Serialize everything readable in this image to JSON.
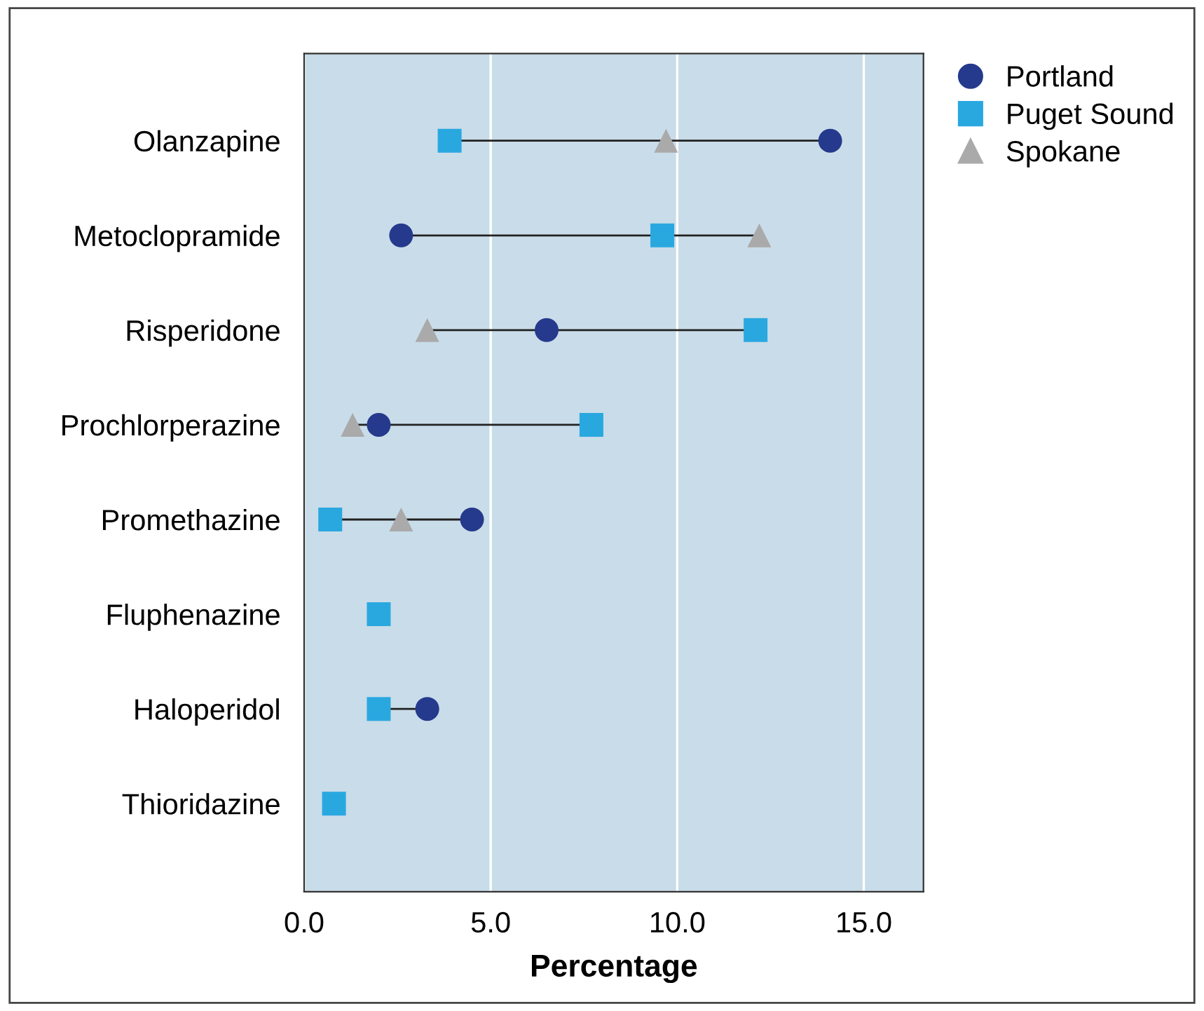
{
  "chart_data": {
    "type": "scatter",
    "xlabel": "Percentage",
    "categories": [
      "Olanzapine",
      "Metoclopramide",
      "Risperidone",
      "Prochlorperazine",
      "Promethazine",
      "Fluphenazine",
      "Haloperidol",
      "Thioridazine"
    ],
    "orientation": "horizontal",
    "series": [
      {
        "name": "Portland",
        "color": "#253a8c",
        "marker": "circle",
        "values": [
          14.1,
          2.6,
          6.5,
          2.0,
          4.5,
          null,
          3.3,
          null
        ]
      },
      {
        "name": "Puget Sound",
        "color": "#29a8e0",
        "marker": "square",
        "values": [
          3.9,
          9.6,
          12.1,
          7.7,
          0.7,
          2.0,
          2.0,
          0.8
        ]
      },
      {
        "name": "Spokane",
        "color": "#aaaaaa",
        "marker": "triangle",
        "values": [
          9.7,
          12.2,
          3.3,
          1.3,
          2.6,
          null,
          null,
          null
        ]
      }
    ],
    "xlim": [
      0,
      16.6
    ],
    "xticks": [
      {
        "value": 0,
        "label": "0.0"
      },
      {
        "value": 5,
        "label": "5.0"
      },
      {
        "value": 10,
        "label": "10.0"
      },
      {
        "value": 15,
        "label": "15.0"
      }
    ],
    "grid": "x",
    "legend": "top right outside"
  }
}
